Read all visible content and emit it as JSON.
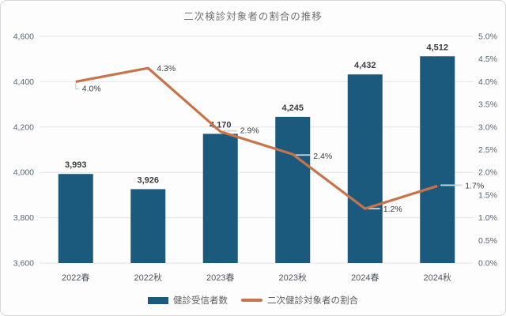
{
  "title": "二次検診対象者の割合の推移",
  "chart_data": {
    "type": "combo",
    "categories": [
      "2022春",
      "2022秋",
      "2023春",
      "2023秋",
      "2024春",
      "2024秋"
    ],
    "series": [
      {
        "name": "健診受信者数",
        "type": "bar",
        "axis": "left",
        "color": "#1b5a7d",
        "values": [
          3993,
          3926,
          4170,
          4245,
          4432,
          4512
        ],
        "labels": [
          "3,993",
          "3,926",
          "4,170",
          "4,245",
          "4,432",
          "4,512"
        ]
      },
      {
        "name": "二次健診対象者の割合",
        "type": "line",
        "axis": "right",
        "color": "#c9734a",
        "values": [
          4.0,
          4.3,
          2.9,
          2.4,
          1.2,
          1.7
        ],
        "labels": [
          "4.0%",
          "4.3%",
          "2.9%",
          "2.4%",
          "1.2%",
          "1.7%"
        ]
      }
    ],
    "left_axis": {
      "min": 3600,
      "max": 4600,
      "tick_labels": [
        "4,600",
        "4,400",
        "4,200",
        "4,000",
        "3,800",
        "3,600"
      ]
    },
    "right_axis": {
      "min": 0,
      "max": 5,
      "tick_labels": [
        "5.0%",
        "4.5%",
        "4.0%",
        "3.5%",
        "3.0%",
        "2.5%",
        "2.0%",
        "1.5%",
        "1.0%",
        "0.5%",
        "0.0%"
      ]
    },
    "grid": "horizontal",
    "legend_position": "bottom"
  },
  "colors": {
    "bar": "#1b5a7d",
    "line": "#c9734a",
    "grid": "#e4e4e6",
    "leader": "#c3dbe6",
    "data_label": "#3c3c3c",
    "axis_text": "#5a6470",
    "title_text": "#6f6f6f"
  }
}
